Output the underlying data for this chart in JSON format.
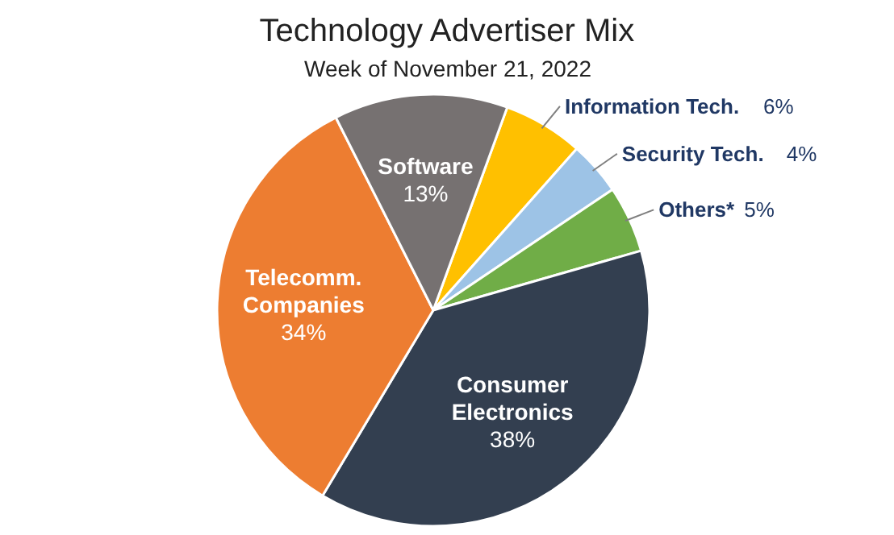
{
  "chart_data": {
    "type": "pie",
    "title": "Technology Advertiser Mix",
    "subtitle": "Week of November 21, 2022",
    "categories": [
      "Information Tech.",
      "Security Tech.",
      "Others*",
      "Consumer\nElectronics",
      "Telecomm.\nCompanies",
      "Software"
    ],
    "values": [
      6,
      4,
      5,
      38,
      34,
      13
    ],
    "colors": [
      "#ffc000",
      "#9dc3e6",
      "#70ad47",
      "#333f50",
      "#ed7d31",
      "#767171"
    ],
    "value_labels": [
      "6%",
      "4%",
      "5%",
      "38%",
      "34%",
      "13%"
    ],
    "data_labels": true
  }
}
